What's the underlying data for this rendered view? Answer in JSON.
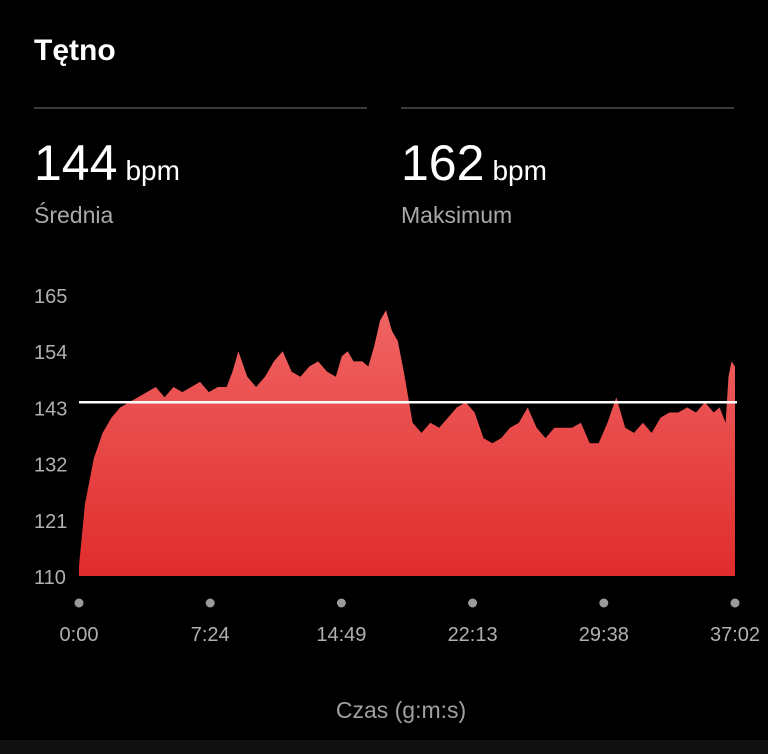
{
  "header": {
    "title": "Tętno"
  },
  "stats": [
    {
      "value": "144",
      "unit": "bpm",
      "label": "Średnia"
    },
    {
      "value": "162",
      "unit": "bpm",
      "label": "Maksimum"
    }
  ],
  "colors": {
    "background": "#000000",
    "area_top": "#f06464",
    "area_bottom": "#e02c2c",
    "average_line": "#ffffff",
    "tick_text": "#b0b0b0"
  },
  "chart_data": {
    "type": "area",
    "title": "",
    "xlabel": "Czas (g:m:s)",
    "ylabel": "",
    "x_unit": "seconds",
    "ylim": [
      110,
      165
    ],
    "yticks": [
      110,
      121,
      132,
      143,
      154,
      165
    ],
    "xtick_labels": [
      "0:00",
      "7:24",
      "14:49",
      "22:13",
      "29:38",
      "37:02"
    ],
    "xlim": [
      0,
      2222
    ],
    "average_line": 144,
    "grid": false,
    "legend": "none",
    "series": [
      {
        "x": [
          0,
          20,
          50,
          80,
          110,
          140,
          170,
          200,
          230,
          260,
          290,
          320,
          350,
          380,
          410,
          440,
          470,
          500,
          520,
          540,
          570,
          600,
          630,
          660,
          690,
          720,
          750,
          780,
          810,
          840,
          870,
          890,
          910,
          930,
          960,
          980,
          1000,
          1020,
          1040,
          1060,
          1080,
          1100,
          1130,
          1160,
          1190,
          1220,
          1250,
          1280,
          1310,
          1340,
          1370,
          1400,
          1430,
          1460,
          1490,
          1520,
          1550,
          1580,
          1610,
          1640,
          1670,
          1700,
          1730,
          1760,
          1790,
          1820,
          1850,
          1880,
          1910,
          1940,
          1970,
          2000,
          2030,
          2060,
          2090,
          2120,
          2150,
          2170,
          2190,
          2200,
          2210,
          2222
        ],
        "y": [
          112,
          124,
          133,
          138,
          141,
          143,
          144,
          145,
          146,
          147,
          145,
          147,
          146,
          147,
          148,
          146,
          147,
          147,
          150,
          154,
          149,
          147,
          149,
          152,
          154,
          150,
          149,
          151,
          152,
          150,
          149,
          153,
          154,
          152,
          152,
          151,
          155,
          160,
          162,
          158,
          156,
          150,
          140,
          138,
          140,
          139,
          141,
          143,
          144,
          142,
          137,
          136,
          137,
          139,
          140,
          143,
          139,
          137,
          139,
          139,
          139,
          140,
          136,
          136,
          140,
          145,
          139,
          138,
          140,
          138,
          141,
          142,
          142,
          143,
          142,
          144,
          142,
          143,
          140,
          149,
          152,
          151
        ]
      }
    ]
  }
}
